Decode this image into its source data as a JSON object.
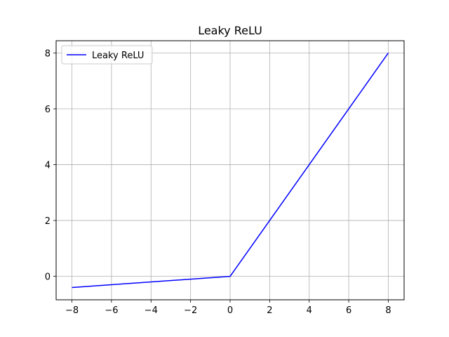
{
  "chart_data": {
    "type": "line",
    "title": "Leaky ReLU",
    "xlabel": "",
    "ylabel": "",
    "xlim": [
      -8.8,
      8.8
    ],
    "ylim": [
      -0.84,
      8.44
    ],
    "xticks": [
      -8,
      -6,
      -4,
      -2,
      0,
      2,
      4,
      6,
      8
    ],
    "xtick_labels": [
      "−8",
      "−6",
      "−4",
      "−2",
      "0",
      "2",
      "4",
      "6",
      "8"
    ],
    "yticks": [
      0,
      2,
      4,
      6,
      8
    ],
    "ytick_labels": [
      "0",
      "2",
      "4",
      "6",
      "8"
    ],
    "grid": true,
    "legend": {
      "position": "upper-left",
      "entries": [
        "Leaky ReLU"
      ]
    },
    "series": [
      {
        "name": "Leaky ReLU",
        "color": "#0000ff",
        "x": [
          -8,
          0,
          8
        ],
        "y": [
          -0.4,
          0,
          8
        ]
      }
    ]
  }
}
